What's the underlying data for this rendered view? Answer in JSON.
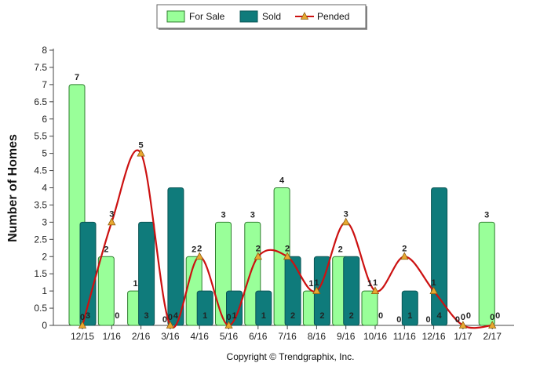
{
  "chart_data": {
    "type": "bar",
    "title": "",
    "ylabel": "Number of Homes",
    "xlabel": "",
    "ylim": [
      0,
      8
    ],
    "yticks": [
      "0",
      "0.5",
      "1",
      "1.5",
      "2",
      "2.5",
      "3",
      "3.5",
      "4",
      "4.5",
      "5",
      "5.5",
      "6",
      "6.5",
      "7",
      "7.5",
      "8"
    ],
    "categories": [
      "12/15",
      "1/16",
      "2/16",
      "3/16",
      "4/16",
      "5/16",
      "6/16",
      "7/16",
      "8/16",
      "9/16",
      "10/16",
      "11/16",
      "12/16",
      "1/17",
      "2/17"
    ],
    "series": [
      {
        "name": "For Sale",
        "kind": "bar",
        "color": "#99ff99",
        "stroke": "#2f7d2f",
        "values": [
          7,
          2,
          1,
          0,
          2,
          3,
          3,
          4,
          1,
          2,
          1,
          0,
          0,
          0,
          3
        ]
      },
      {
        "name": "Sold",
        "kind": "bar",
        "color": "#0f7b7b",
        "stroke": "#0a5555",
        "values": [
          3,
          0,
          3,
          4,
          1,
          1,
          1,
          2,
          2,
          2,
          0,
          1,
          4,
          0,
          0
        ]
      },
      {
        "name": "Pended",
        "kind": "line",
        "color": "#cc1111",
        "marker": "#e8a830",
        "values": [
          0,
          3,
          5,
          0,
          2,
          0,
          2,
          2,
          1,
          3,
          1,
          2,
          1,
          0,
          0
        ]
      }
    ],
    "legend": {
      "position": "top-center"
    },
    "grid": false
  },
  "footer": {
    "copyright": "Copyright © Trendgraphix, Inc."
  }
}
